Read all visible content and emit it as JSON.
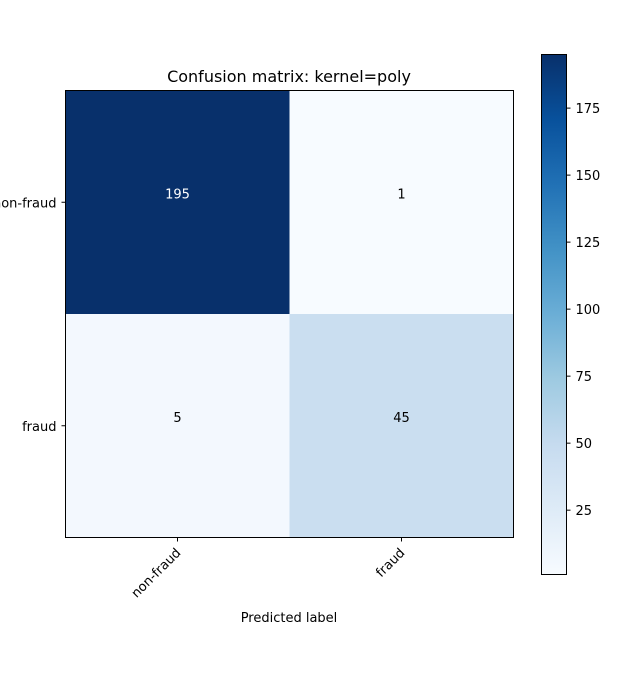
{
  "chart_data": {
    "type": "heatmap",
    "title": "Confusion matrix: kernel=poly",
    "xlabel": "Predicted label",
    "ylabel": "",
    "row_labels": [
      "non-fraud",
      "fraud"
    ],
    "col_labels": [
      "non-fraud",
      "fraud"
    ],
    "values": [
      [
        195,
        1
      ],
      [
        5,
        45
      ]
    ],
    "colormap": "Blues",
    "color_range": [
      1,
      195
    ],
    "colorbar_ticks": [
      25,
      50,
      75,
      100,
      125,
      150,
      175
    ],
    "colorbar_tick_labels": [
      "25",
      "50",
      "75",
      "100",
      "125",
      "150",
      "175"
    ],
    "text_colors": {
      "dark_cell": "#ffffff",
      "light_cell": "#000000"
    }
  }
}
